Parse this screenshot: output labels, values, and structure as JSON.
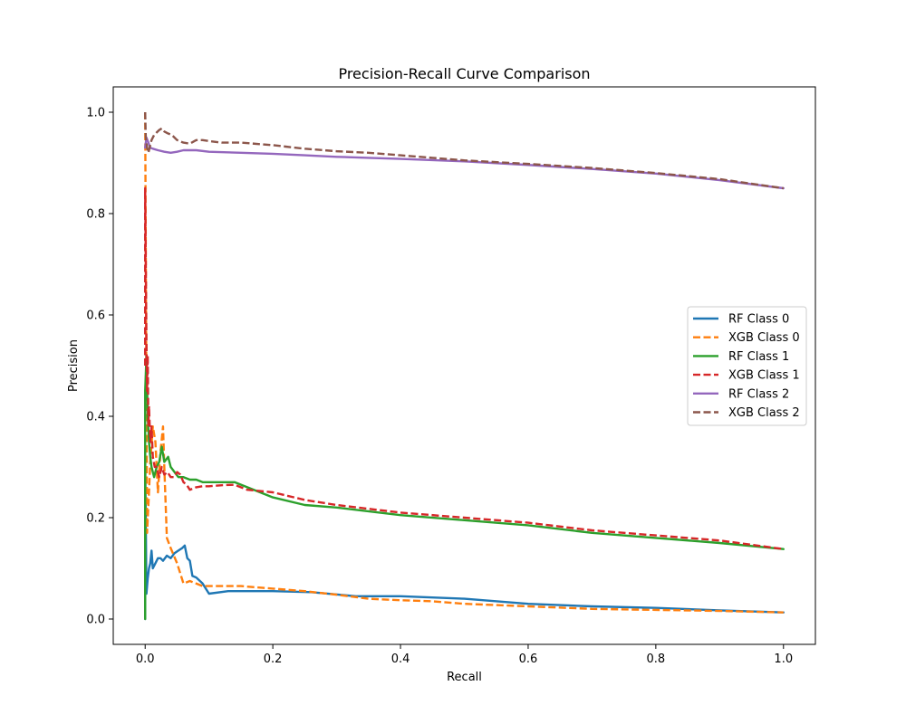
{
  "chart_data": {
    "type": "line",
    "title": "Precision-Recall Curve Comparison",
    "xlabel": "Recall",
    "ylabel": "Precision",
    "xlim": [
      -0.05,
      1.05
    ],
    "ylim": [
      -0.05,
      1.05
    ],
    "xticks": [
      0.0,
      0.2,
      0.4,
      0.6,
      0.8,
      1.0
    ],
    "xtick_labels": [
      "0.0",
      "0.2",
      "0.4",
      "0.6",
      "0.8",
      "1.0"
    ],
    "yticks": [
      0.0,
      0.2,
      0.4,
      0.6,
      0.8,
      1.0
    ],
    "ytick_labels": [
      "0.0",
      "0.2",
      "0.4",
      "0.6",
      "0.8",
      "1.0"
    ],
    "grid": false,
    "legend_position": "center right",
    "series": [
      {
        "name": "RF Class 0",
        "color": "#1f77b4",
        "dash": "solid",
        "x": [
          0.0,
          0.0,
          0.002,
          0.004,
          0.006,
          0.008,
          0.01,
          0.012,
          0.016,
          0.02,
          0.024,
          0.028,
          0.034,
          0.04,
          0.046,
          0.052,
          0.058,
          0.062,
          0.066,
          0.07,
          0.074,
          0.08,
          0.09,
          0.1,
          0.13,
          0.2,
          0.26,
          0.33,
          0.4,
          0.5,
          0.6,
          0.7,
          0.8,
          0.9,
          1.0
        ],
        "y": [
          0.0,
          0.33,
          0.05,
          0.08,
          0.1,
          0.11,
          0.135,
          0.1,
          0.11,
          0.12,
          0.12,
          0.115,
          0.125,
          0.12,
          0.13,
          0.135,
          0.14,
          0.145,
          0.12,
          0.115,
          0.085,
          0.082,
          0.07,
          0.05,
          0.055,
          0.055,
          0.053,
          0.045,
          0.045,
          0.04,
          0.03,
          0.025,
          0.022,
          0.017,
          0.013
        ]
      },
      {
        "name": "XGB Class 0",
        "color": "#ff7f0e",
        "dash": "dashed",
        "x": [
          0.0,
          0.003,
          0.006,
          0.008,
          0.012,
          0.016,
          0.02,
          0.024,
          0.028,
          0.03,
          0.034,
          0.04,
          0.05,
          0.06,
          0.07,
          0.08,
          0.09,
          0.1,
          0.15,
          0.2,
          0.25,
          0.3,
          0.35,
          0.4,
          0.45,
          0.5,
          0.6,
          0.7,
          0.8,
          0.9,
          1.0
        ],
        "y": [
          1.0,
          0.17,
          0.25,
          0.31,
          0.38,
          0.35,
          0.25,
          0.33,
          0.38,
          0.3,
          0.16,
          0.14,
          0.11,
          0.07,
          0.075,
          0.07,
          0.065,
          0.065,
          0.065,
          0.06,
          0.055,
          0.048,
          0.04,
          0.037,
          0.035,
          0.03,
          0.025,
          0.02,
          0.018,
          0.016,
          0.013
        ]
      },
      {
        "name": "RF Class 1",
        "color": "#2ca02c",
        "dash": "solid",
        "x": [
          0.0,
          0.0,
          0.002,
          0.004,
          0.006,
          0.008,
          0.01,
          0.014,
          0.018,
          0.022,
          0.026,
          0.03,
          0.036,
          0.04,
          0.046,
          0.052,
          0.06,
          0.07,
          0.08,
          0.09,
          0.1,
          0.12,
          0.14,
          0.16,
          0.2,
          0.25,
          0.3,
          0.4,
          0.5,
          0.6,
          0.7,
          0.8,
          0.9,
          1.0
        ],
        "y": [
          0.0,
          0.45,
          0.52,
          0.4,
          0.35,
          0.32,
          0.3,
          0.28,
          0.3,
          0.31,
          0.34,
          0.31,
          0.32,
          0.3,
          0.29,
          0.28,
          0.28,
          0.275,
          0.275,
          0.27,
          0.27,
          0.27,
          0.27,
          0.26,
          0.24,
          0.225,
          0.22,
          0.205,
          0.195,
          0.185,
          0.17,
          0.16,
          0.15,
          0.138
        ]
      },
      {
        "name": "XGB Class 1",
        "color": "#d62728",
        "dash": "dashed",
        "x": [
          0.0,
          0.0,
          0.002,
          0.003,
          0.004,
          0.005,
          0.006,
          0.008,
          0.01,
          0.012,
          0.015,
          0.018,
          0.022,
          0.026,
          0.03,
          0.035,
          0.04,
          0.045,
          0.05,
          0.055,
          0.06,
          0.065,
          0.07,
          0.08,
          0.09,
          0.1,
          0.12,
          0.14,
          0.16,
          0.2,
          0.25,
          0.3,
          0.4,
          0.5,
          0.6,
          0.7,
          0.8,
          0.9,
          1.0
        ],
        "y": [
          0.5,
          0.85,
          0.55,
          0.45,
          0.52,
          0.38,
          0.42,
          0.35,
          0.38,
          0.32,
          0.3,
          0.3,
          0.28,
          0.3,
          0.285,
          0.29,
          0.28,
          0.28,
          0.29,
          0.285,
          0.27,
          0.265,
          0.255,
          0.26,
          0.262,
          0.262,
          0.264,
          0.265,
          0.255,
          0.25,
          0.235,
          0.225,
          0.21,
          0.2,
          0.19,
          0.175,
          0.165,
          0.155,
          0.138
        ]
      },
      {
        "name": "RF Class 2",
        "color": "#9467bd",
        "dash": "solid",
        "x": [
          0.0,
          0.002,
          0.005,
          0.008,
          0.012,
          0.02,
          0.03,
          0.04,
          0.05,
          0.06,
          0.08,
          0.1,
          0.15,
          0.2,
          0.25,
          0.3,
          0.35,
          0.4,
          0.5,
          0.6,
          0.7,
          0.8,
          0.9,
          1.0
        ],
        "y": [
          0.93,
          0.95,
          0.94,
          0.93,
          0.928,
          0.925,
          0.922,
          0.92,
          0.922,
          0.925,
          0.925,
          0.922,
          0.92,
          0.918,
          0.915,
          0.912,
          0.91,
          0.908,
          0.903,
          0.896,
          0.888,
          0.879,
          0.866,
          0.85
        ]
      },
      {
        "name": "XGB Class 2",
        "color": "#8c564b",
        "dash": "dashed",
        "x": [
          0.0,
          0.001,
          0.003,
          0.005,
          0.007,
          0.01,
          0.014,
          0.018,
          0.022,
          0.026,
          0.03,
          0.036,
          0.042,
          0.05,
          0.06,
          0.07,
          0.08,
          0.09,
          0.1,
          0.12,
          0.15,
          0.2,
          0.25,
          0.3,
          0.35,
          0.4,
          0.45,
          0.5,
          0.6,
          0.7,
          0.8,
          0.9,
          1.0
        ],
        "y": [
          1.0,
          0.95,
          0.93,
          0.92,
          0.93,
          0.945,
          0.955,
          0.96,
          0.965,
          0.968,
          0.962,
          0.958,
          0.955,
          0.945,
          0.94,
          0.938,
          0.945,
          0.945,
          0.943,
          0.94,
          0.94,
          0.935,
          0.928,
          0.923,
          0.92,
          0.915,
          0.91,
          0.905,
          0.898,
          0.89,
          0.88,
          0.868,
          0.85
        ]
      }
    ]
  }
}
